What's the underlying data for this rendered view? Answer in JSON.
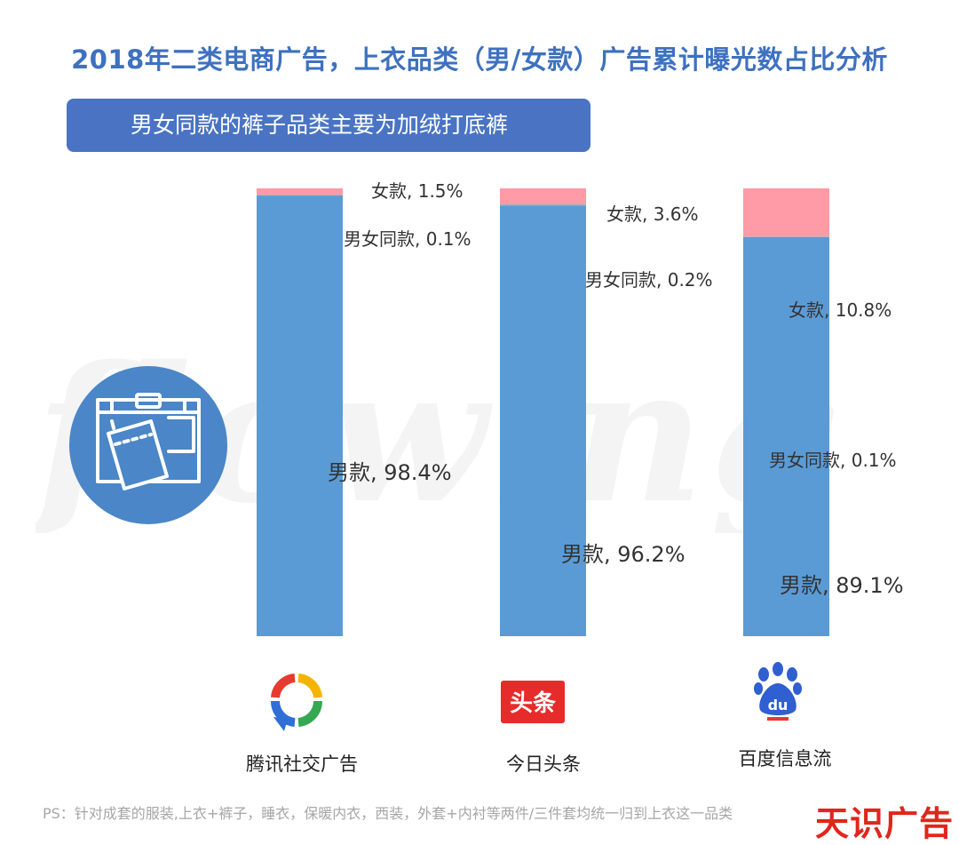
{
  "title": "2018年二类电商广告，上衣品类（男/女款）广告累计曝光数占比分析",
  "banner": "男女同款的裤子品类主要为加绒打底裤",
  "watermark": "flowing",
  "footnote": "PS：针对成套的服装,上衣+裤子，睡衣，保暖内衣，西装，外套+内衬等两件/三件套均统一归到上衣这一品类",
  "brand": "天识广告",
  "icons": {
    "badge": "clothing-jeans-icon",
    "tencent": "tencent-social-ads-logo",
    "toutiao": "toutiao-logo",
    "baidu": "baidu-paw-logo"
  },
  "toutiao_logo_text": "头条",
  "baidu_logo_text": "du",
  "colors": {
    "male": "#5b9bd5",
    "female": "#ff9aa6",
    "unisex": "#70c6c0",
    "title": "#3e71bf",
    "banner": "#4a74c3",
    "brand": "#e0261c"
  },
  "chart_data": {
    "type": "bar",
    "stacked": true,
    "normalized": true,
    "categories": [
      "腾讯社交广告",
      "今日头条",
      "百度信息流"
    ],
    "series": [
      {
        "name": "男款",
        "values": [
          98.4,
          96.2,
          89.1
        ]
      },
      {
        "name": "男女同款",
        "values": [
          0.1,
          0.2,
          0.1
        ]
      },
      {
        "name": "女款",
        "values": [
          1.5,
          3.6,
          10.8
        ]
      }
    ],
    "labels": [
      [
        "男款, 98.4%",
        "男女同款, 0.1%",
        "女款, 1.5%"
      ],
      [
        "男款, 96.2%",
        "男女同款, 0.2%",
        "女款, 3.6%"
      ],
      [
        "男款, 89.1%",
        "男女同款, 0.1%",
        "女款, 10.8%"
      ]
    ],
    "unit": "%",
    "ylim": [
      0,
      100
    ]
  }
}
